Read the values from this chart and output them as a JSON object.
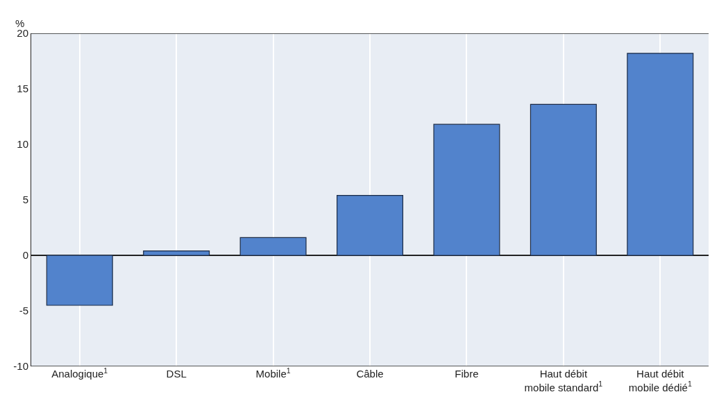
{
  "chart_data": {
    "type": "bar",
    "ylabel": "%",
    "categories": [
      "Analogique$^{1}$",
      "DSL",
      "Mobile$^{1}$",
      "Câble",
      "Fibre",
      "Haut débit mobile standard$^{1}$",
      "Haut débit mobile dédié$^{1}$"
    ],
    "values": [
      -4.5,
      0.4,
      1.6,
      5.4,
      11.8,
      13.6,
      18.2
    ],
    "color": "#5283cc",
    "ylim": [
      -10,
      20
    ],
    "yticks": [
      -10,
      -5,
      0,
      5,
      10,
      15,
      20
    ],
    "grid": "x"
  }
}
